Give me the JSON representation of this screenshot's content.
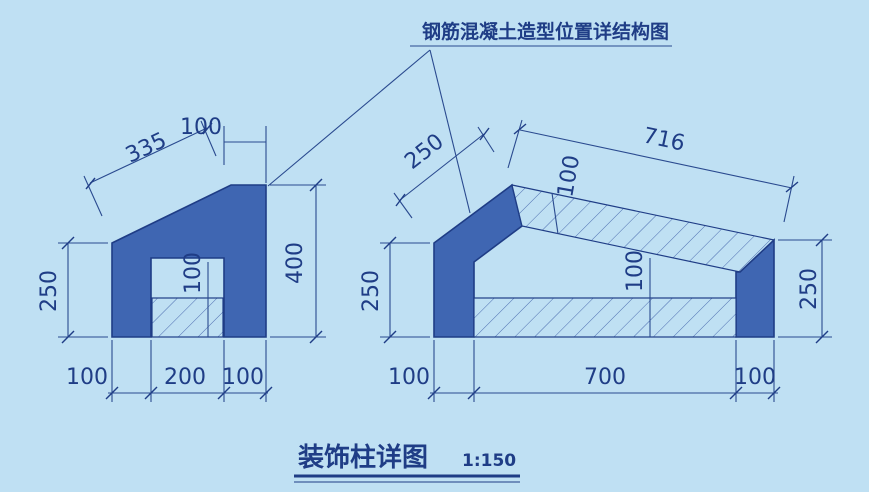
{
  "callout_title": "钢筋混凝土造型位置详结构图",
  "title": "装饰柱详图",
  "scale": "1:150",
  "left_detail": {
    "dim_top_slope": "335",
    "dim_top_right": "100",
    "dim_height_right": "400",
    "dim_height_left": "250",
    "dim_inner_vertical": "100",
    "dim_bottom": [
      "100",
      "200",
      "100"
    ]
  },
  "right_detail": {
    "dim_left_slope": "250",
    "dim_top_slope": "716",
    "dim_slope_thickness": "100",
    "dim_inner": "100",
    "dim_height_left": "250",
    "dim_height_right": "250",
    "dim_bottom": [
      "100",
      "700",
      "100"
    ]
  },
  "colors": {
    "background": "#bfe0f3",
    "line": "#1f3d86",
    "fill": "#3f66b2"
  }
}
